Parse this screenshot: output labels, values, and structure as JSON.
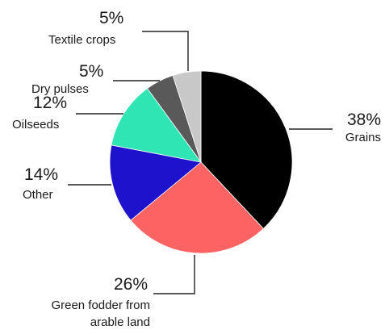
{
  "chart_data": {
    "type": "pie",
    "title": "",
    "start_angle_deg": 0,
    "direction": "clockwise",
    "slices": [
      {
        "label": "Grains",
        "value": 38,
        "value_label": "38%",
        "color": "#000000"
      },
      {
        "label": "Green fodder from arable land",
        "value": 26,
        "value_label": "26%",
        "color": "#fc6464"
      },
      {
        "label": "Other",
        "value": 14,
        "value_label": "14%",
        "color": "#1e12cc"
      },
      {
        "label": "Oilseeds",
        "value": 12,
        "value_label": "12%",
        "color": "#2fe5b4"
      },
      {
        "label": "Dry pulses",
        "value": 5,
        "value_label": "5%",
        "color": "#595959"
      },
      {
        "label": "Textile crops",
        "value": 5,
        "value_label": "5%",
        "color": "#c8c8c8"
      }
    ]
  }
}
